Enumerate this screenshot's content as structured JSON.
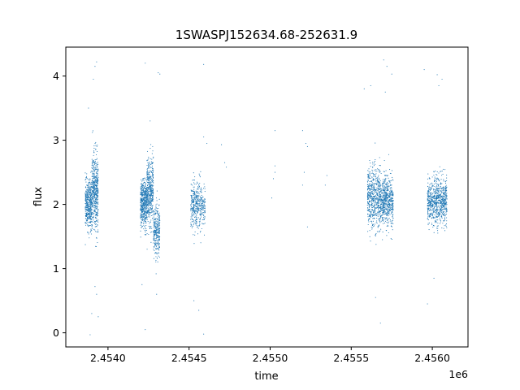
{
  "chart_data": {
    "type": "scatter",
    "title": "1SWASPJ152634.68-252631.9",
    "xlabel": "time",
    "ylabel": "flux",
    "x_offset_label": "1e6",
    "x_tick_values": [
      2.454,
      2.4545,
      2.455,
      2.4555,
      2.456
    ],
    "x_tick_labels": [
      "2.4540",
      "2.4545",
      "2.4550",
      "2.4555",
      "2.4560"
    ],
    "y_tick_values": [
      0,
      1,
      2,
      3,
      4
    ],
    "y_tick_labels": [
      "0",
      "1",
      "2",
      "3",
      "4"
    ],
    "xlim": [
      2.45374,
      2.45622
    ],
    "ylim": [
      -0.22,
      4.45
    ],
    "grid": false,
    "marker_color": "#1f77b4",
    "series": [
      {
        "clusters": [
          {
            "x_start": 2.45386,
            "x_end": 2.4539,
            "center": 2.0,
            "spread": 0.3,
            "count": 450
          },
          {
            "x_start": 2.4539,
            "x_end": 2.45394,
            "center": 2.2,
            "spread": 0.5,
            "count": 500
          },
          {
            "x_start": 2.4542,
            "x_end": 2.45424,
            "center": 2.0,
            "spread": 0.3,
            "count": 480
          },
          {
            "x_start": 2.45424,
            "x_end": 2.45428,
            "center": 2.2,
            "spread": 0.45,
            "count": 450
          },
          {
            "x_start": 2.45428,
            "x_end": 2.45432,
            "center": 1.55,
            "spread": 0.35,
            "count": 300
          },
          {
            "x_start": 2.45451,
            "x_end": 2.4546,
            "center": 2.0,
            "spread": 0.3,
            "count": 450
          },
          {
            "x_start": 2.4556,
            "x_end": 2.45568,
            "center": 2.1,
            "spread": 0.4,
            "count": 600
          },
          {
            "x_start": 2.45568,
            "x_end": 2.45576,
            "center": 2.05,
            "spread": 0.32,
            "count": 600
          },
          {
            "x_start": 2.45597,
            "x_end": 2.45609,
            "center": 2.05,
            "spread": 0.3,
            "count": 800
          }
        ],
        "points": [
          [
            2.45393,
            4.22
          ],
          [
            2.45392,
            4.15
          ],
          [
            2.45391,
            3.95
          ],
          [
            2.45388,
            3.5
          ],
          [
            2.45392,
            0.72
          ],
          [
            2.45393,
            0.6
          ],
          [
            2.4539,
            0.3
          ],
          [
            2.45394,
            0.25
          ],
          [
            2.45389,
            -0.03
          ],
          [
            2.45423,
            4.2
          ],
          [
            2.45431,
            4.05
          ],
          [
            2.45432,
            4.03
          ],
          [
            2.45426,
            3.3
          ],
          [
            2.45423,
            0.05
          ],
          [
            2.45421,
            0.75
          ],
          [
            2.4543,
            0.6
          ],
          [
            2.45459,
            4.18
          ],
          [
            2.45461,
            2.95
          ],
          [
            2.45459,
            3.05
          ],
          [
            2.45453,
            0.5
          ],
          [
            2.45456,
            0.35
          ],
          [
            2.45459,
            -0.02
          ],
          [
            2.4547,
            2.93
          ],
          [
            2.45472,
            2.65
          ],
          [
            2.45473,
            2.58
          ],
          [
            2.45503,
            3.15
          ],
          [
            2.45503,
            2.5
          ],
          [
            2.45502,
            2.4
          ],
          [
            2.45501,
            2.1
          ],
          [
            2.45503,
            2.6
          ],
          [
            2.4552,
            3.15
          ],
          [
            2.45522,
            2.95
          ],
          [
            2.45523,
            2.9
          ],
          [
            2.45521,
            2.5
          ],
          [
            2.4552,
            2.3
          ],
          [
            2.45523,
            1.65
          ],
          [
            2.45535,
            2.45
          ],
          [
            2.45534,
            2.3
          ],
          [
            2.45558,
            3.8
          ],
          [
            2.45562,
            3.85
          ],
          [
            2.4557,
            4.25
          ],
          [
            2.45572,
            4.15
          ],
          [
            2.45575,
            4.03
          ],
          [
            2.45571,
            3.75
          ],
          [
            2.45568,
            0.15
          ],
          [
            2.45565,
            0.55
          ],
          [
            2.45595,
            4.1
          ],
          [
            2.45603,
            4.02
          ],
          [
            2.45606,
            3.95
          ],
          [
            2.45604,
            3.85
          ],
          [
            2.45597,
            0.45
          ],
          [
            2.45601,
            0.85
          ]
        ]
      }
    ]
  }
}
